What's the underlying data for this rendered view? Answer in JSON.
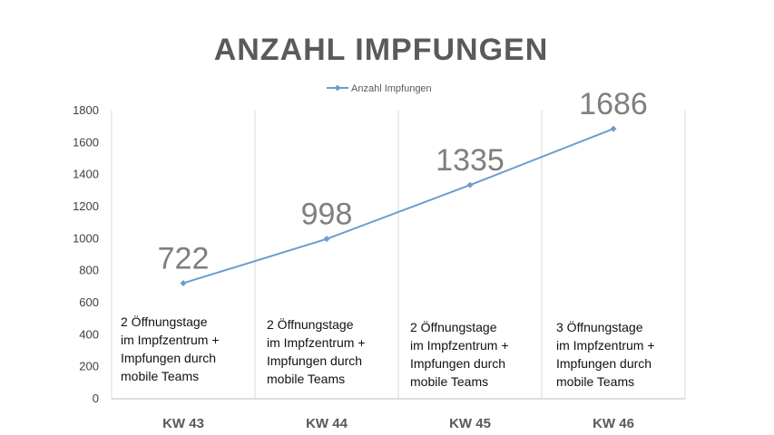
{
  "chart_data": {
    "type": "line",
    "title": "ANZAHL IMPFUNGEN",
    "xlabel": "",
    "ylabel": "",
    "categories": [
      "KW 43",
      "KW 44",
      "KW 45",
      "KW 46"
    ],
    "series": [
      {
        "name": "Anzahl Impfungen",
        "values": [
          722,
          998,
          1335,
          1686
        ],
        "color": "#6e9ccd"
      }
    ],
    "data_labels": [
      "722",
      "998",
      "1335",
      "1686"
    ],
    "y_ticks": [
      0,
      200,
      400,
      600,
      800,
      1000,
      1200,
      1400,
      1600,
      1800
    ],
    "ylim": [
      0,
      1800
    ],
    "grid": "vertical category dividers",
    "legend": "top-center",
    "annotations": [
      [
        "2 Öffnungstage",
        "im Impfzentrum +",
        "Impfungen durch",
        "mobile Teams"
      ],
      [
        "2 Öffnungstage",
        "im Impfzentrum +",
        "Impfungen durch",
        "mobile Teams"
      ],
      [
        "2 Öffnungstage",
        "im Impfzentrum +",
        "Impfungen durch",
        "mobile Teams"
      ],
      [
        "3 Öffnungstage",
        "im Impfzentrum +",
        "Impfungen durch",
        "mobile Teams"
      ]
    ]
  }
}
